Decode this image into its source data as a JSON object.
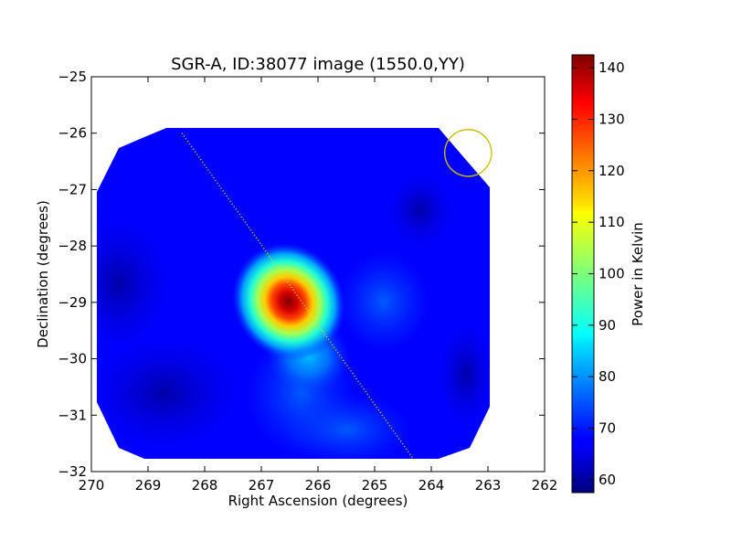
{
  "chart_data": {
    "type": "heatmap",
    "title": "SGR-A, ID:38077 image (1550.0,YY)",
    "xlabel": "Right Ascension (degrees)",
    "ylabel": "Declination (degrees)",
    "xlim": [
      270,
      262
    ],
    "ylim": [
      -32,
      -25
    ],
    "x_ticks": [
      "270",
      "269",
      "268",
      "267",
      "266",
      "265",
      "264",
      "263",
      "262"
    ],
    "y_ticks": [
      "−25",
      "−26",
      "−27",
      "−28",
      "−29",
      "−30",
      "−31",
      "−32"
    ],
    "colorbar": {
      "label": "Power in Kelvin",
      "range": [
        57.5,
        142.5
      ],
      "ticks": [
        "60",
        "70",
        "80",
        "90",
        "100",
        "110",
        "120",
        "130",
        "140"
      ],
      "colormap": "jet"
    },
    "peak": {
      "ra": 266.45,
      "dec": -28.95,
      "value": 142
    },
    "secondary_lobe": {
      "ra": 265.9,
      "dec": -29.85,
      "value": 82
    },
    "background_value": 65,
    "galactic_plane_line": {
      "start": [
        268.4,
        -26.0
      ],
      "end": [
        264.3,
        -31.8
      ],
      "color": "#e8e000",
      "style": "dotted"
    },
    "marker_circle": {
      "ra": 263.35,
      "dec": -26.35,
      "radius_deg": 0.33,
      "color": "#c8c000"
    },
    "grid": false
  }
}
